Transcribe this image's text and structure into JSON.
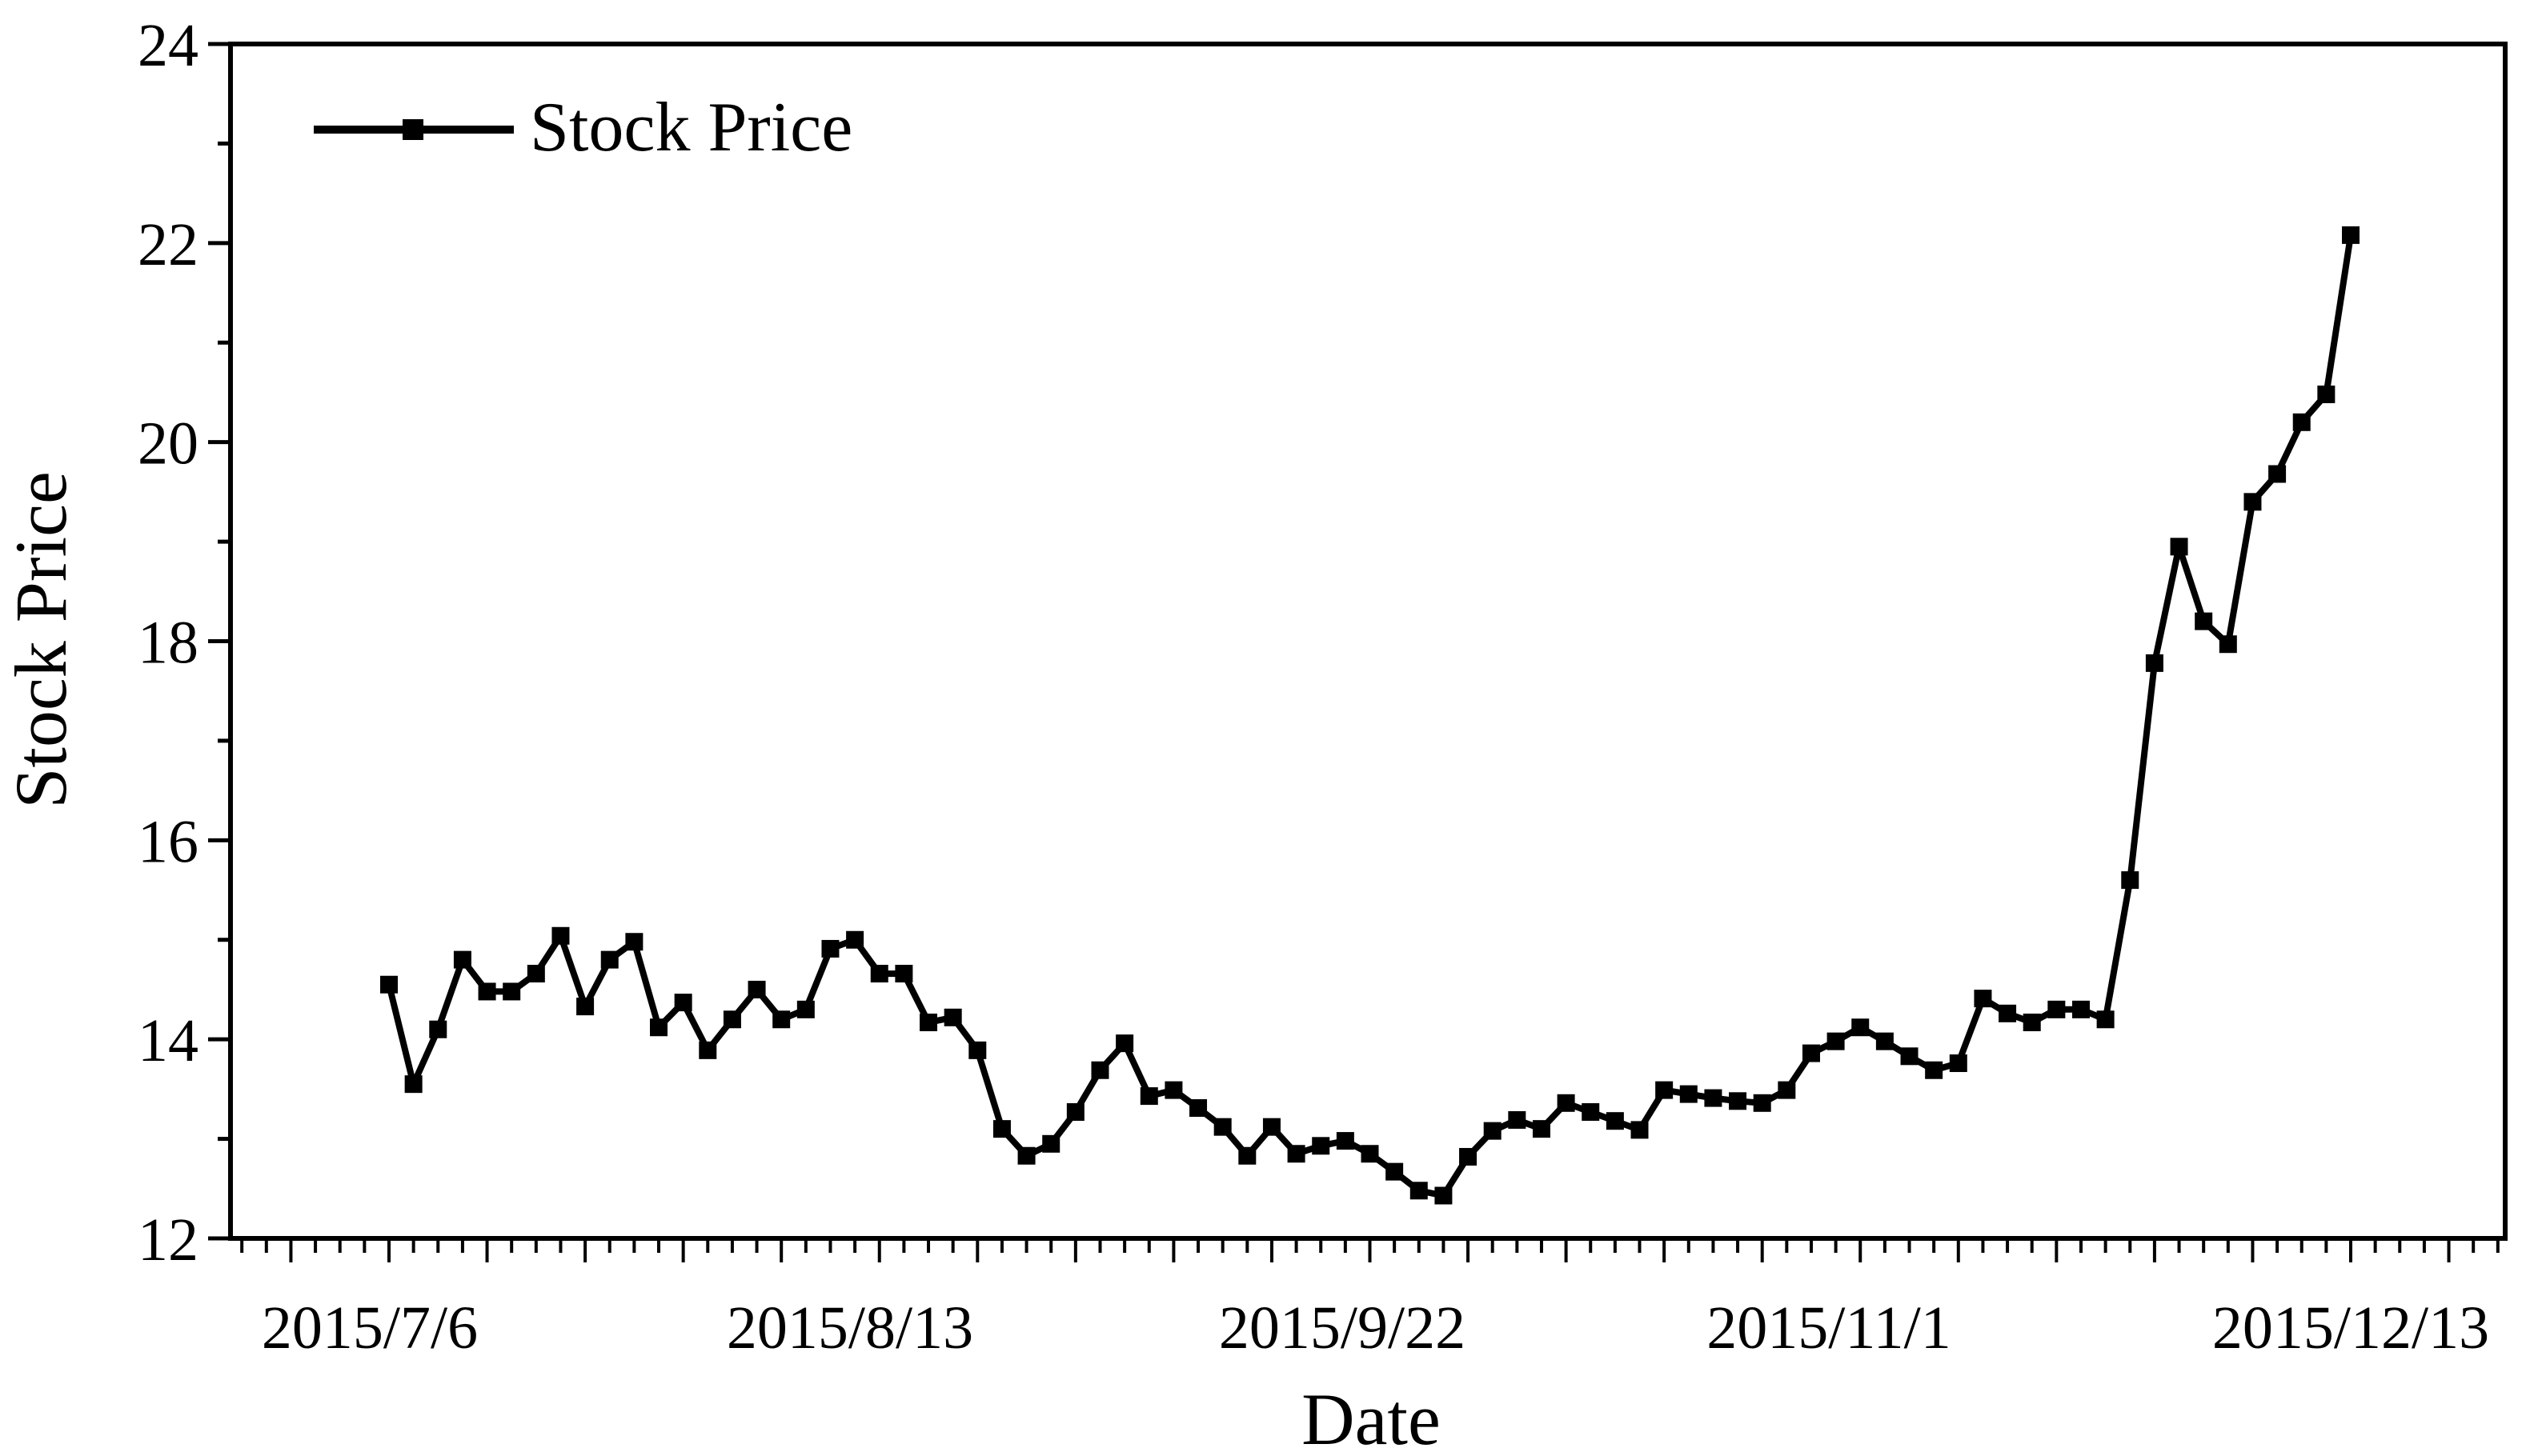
{
  "chart_data": {
    "type": "line",
    "xlabel": "Date",
    "ylabel": "Stock Price",
    "ylim": [
      12,
      24
    ],
    "y_ticks": [
      12,
      14,
      16,
      18,
      20,
      22,
      24
    ],
    "x_tick_labels": [
      "2015/7/6",
      "2015/8/13",
      "2015/9/22",
      "2015/11/1",
      "2015/12/13"
    ],
    "grid": false,
    "legend_position": "top-left",
    "line_color": "#000000",
    "series": [
      {
        "name": "Stock Price",
        "values": [
          14.55,
          13.55,
          14.1,
          14.8,
          14.48,
          14.48,
          14.66,
          15.04,
          14.33,
          14.8,
          14.98,
          14.12,
          14.37,
          13.89,
          14.2,
          14.5,
          14.2,
          14.3,
          14.91,
          15.0,
          14.66,
          14.66,
          14.17,
          14.22,
          13.89,
          13.1,
          12.83,
          12.95,
          13.27,
          13.69,
          13.96,
          13.43,
          13.49,
          13.31,
          13.12,
          12.83,
          13.12,
          12.85,
          12.93,
          12.98,
          12.85,
          12.67,
          12.48,
          12.43,
          12.82,
          13.08,
          13.19,
          13.1,
          13.36,
          13.27,
          13.18,
          13.09,
          13.49,
          13.45,
          13.41,
          13.38,
          13.36,
          13.49,
          13.86,
          13.98,
          14.12,
          13.98,
          13.83,
          13.69,
          13.76,
          14.41,
          14.26,
          14.17,
          14.3,
          14.3,
          14.2,
          15.6,
          17.78,
          18.95,
          18.2,
          17.97,
          19.4,
          19.68,
          20.2,
          20.48,
          22.08
        ]
      }
    ]
  }
}
